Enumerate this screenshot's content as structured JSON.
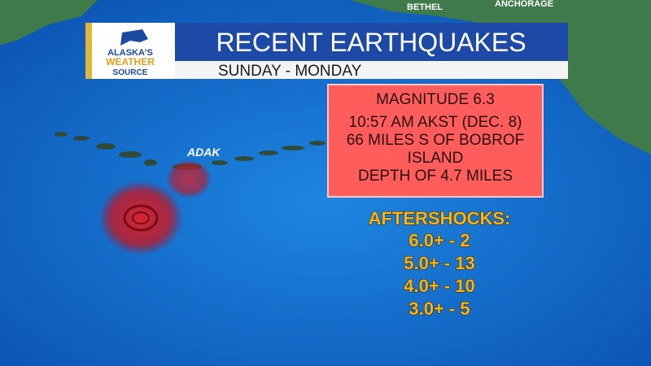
{
  "logo": {
    "line1": "ALASKA'S",
    "line2": "WEATHER",
    "line3": "SOURCE"
  },
  "header": {
    "title": "RECENT EARTHQUAKES",
    "subtitle": "SUNDAY - MONDAY"
  },
  "map_labels": {
    "bethel": "BETHEL",
    "anchorage": "ANCHORAGE",
    "adak": "ADAK"
  },
  "info_box": {
    "lines": [
      "MAGNITUDE 6.3",
      "10:57 AM AKST (DEC. 8)",
      "66 MILES S OF BOBROF",
      "ISLAND",
      "DEPTH OF 4.7 MILES"
    ]
  },
  "aftershocks": {
    "heading": "AFTERSHOCKS:",
    "items": [
      "6.0+ - 2",
      "5.0+ - 13",
      "4.0+ - 10",
      "3.0+ - 5"
    ]
  }
}
